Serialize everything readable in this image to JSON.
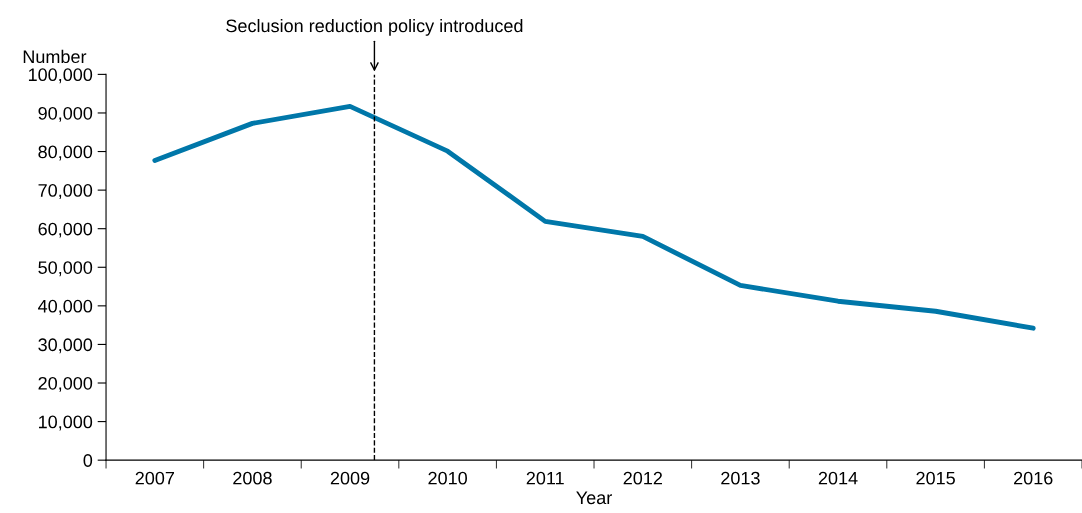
{
  "chart_data": {
    "type": "line",
    "xlabel": "Year",
    "ylabel": "Number",
    "x": [
      2007,
      2008,
      2009,
      2010,
      2011,
      2012,
      2013,
      2014,
      2015,
      2016
    ],
    "series": [
      {
        "color": "#0077a9",
        "values": [
          77700,
          87300,
          91700,
          80100,
          61900,
          58000,
          45300,
          41200,
          38600,
          34200
        ]
      }
    ],
    "xlim": [
      2006.5,
      2016.5
    ],
    "xticks": [
      2007,
      2008,
      2009,
      2010,
      2011,
      2012,
      2013,
      2014,
      2015,
      2016
    ],
    "ylim": [
      0,
      100000
    ],
    "yticks": [
      {
        "value": 0,
        "label": "0"
      },
      {
        "value": 10000,
        "label": "10,000"
      },
      {
        "value": 20000,
        "label": "20,000"
      },
      {
        "value": 30000,
        "label": "30,000"
      },
      {
        "value": 40000,
        "label": "40,000"
      },
      {
        "value": 50000,
        "label": "50,000"
      },
      {
        "value": 60000,
        "label": "60,000"
      },
      {
        "value": 70000,
        "label": "70,000"
      },
      {
        "value": 80000,
        "label": "80,000"
      },
      {
        "value": 90000,
        "label": "90,000"
      },
      {
        "value": 100000,
        "label": "100,000"
      }
    ],
    "ref_lines": [
      {
        "axis": "x",
        "value": 2009.25,
        "label": "Seclusion reduction policy introduced",
        "color": "#000000",
        "line_style": "dashed"
      }
    ],
    "grid": false,
    "legend": false,
    "marker": "none",
    "line_style": "solid"
  }
}
